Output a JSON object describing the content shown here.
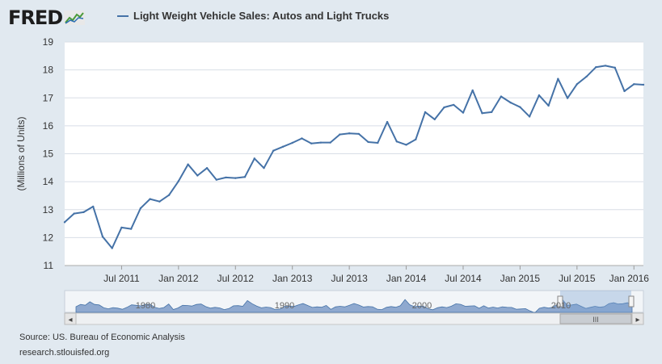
{
  "header": {
    "logo_text": "FRED",
    "logo_icon": "fred-graph-icon",
    "legend_label": "Light Weight Vehicle Sales: Autos and Light Trucks"
  },
  "footer": {
    "source": "Source: US. Bureau of Economic Analysis",
    "url": "research.stlouisfed.org"
  },
  "navigator": {
    "year_labels": [
      "1980",
      "1990",
      "2000",
      "2010"
    ],
    "scroll_handle_label": "III",
    "left_arrow": "◂",
    "right_arrow": "▸"
  },
  "colors": {
    "background": "#e1e9f0",
    "plot_background": "#ffffff",
    "series": "#4572a7",
    "grid": "#d8dee6",
    "navigator_fill": "#8fa9cf"
  },
  "chart_data": {
    "type": "line",
    "title": "",
    "xlabel": "",
    "ylabel": "(Millions of Units)",
    "ylim": [
      11,
      19
    ],
    "yticks": [
      11,
      12,
      13,
      14,
      15,
      16,
      17,
      18,
      19
    ],
    "x_tick_labels": [
      "Jul 2011",
      "Jan 2012",
      "Jul 2012",
      "Jan 2013",
      "Jul 2013",
      "Jan 2014",
      "Jul 2014",
      "Jan 2015",
      "Jul 2015",
      "Jan 2016"
    ],
    "grid": true,
    "legend_position": "top-left",
    "series": [
      {
        "name": "Light Weight Vehicle Sales: Autos and Light Trucks",
        "x": [
          "2011-01",
          "2011-02",
          "2011-03",
          "2011-04",
          "2011-05",
          "2011-06",
          "2011-07",
          "2011-08",
          "2011-09",
          "2011-10",
          "2011-11",
          "2011-12",
          "2012-01",
          "2012-02",
          "2012-03",
          "2012-04",
          "2012-05",
          "2012-06",
          "2012-07",
          "2012-08",
          "2012-09",
          "2012-10",
          "2012-11",
          "2012-12",
          "2013-01",
          "2013-02",
          "2013-03",
          "2013-04",
          "2013-05",
          "2013-06",
          "2013-07",
          "2013-08",
          "2013-09",
          "2013-10",
          "2013-11",
          "2013-12",
          "2014-01",
          "2014-02",
          "2014-03",
          "2014-04",
          "2014-05",
          "2014-06",
          "2014-07",
          "2014-08",
          "2014-09",
          "2014-10",
          "2014-11",
          "2014-12",
          "2015-01",
          "2015-02",
          "2015-03",
          "2015-04",
          "2015-05",
          "2015-06",
          "2015-07",
          "2015-08",
          "2015-09",
          "2015-10",
          "2015-11",
          "2015-12",
          "2016-01",
          "2016-02"
        ],
        "values": [
          12.55,
          12.86,
          12.91,
          13.11,
          12.03,
          11.62,
          12.36,
          12.31,
          13.05,
          13.38,
          13.29,
          13.52,
          14.02,
          14.62,
          14.22,
          14.49,
          14.07,
          14.15,
          14.13,
          14.17,
          14.83,
          14.49,
          15.11,
          15.25,
          15.39,
          15.55,
          15.37,
          15.4,
          15.4,
          15.69,
          15.73,
          15.71,
          15.42,
          15.39,
          16.14,
          15.44,
          15.32,
          15.51,
          16.49,
          16.23,
          16.66,
          16.75,
          16.47,
          17.27,
          16.45,
          16.49,
          17.05,
          16.83,
          16.67,
          16.33,
          17.09,
          16.72,
          17.68,
          16.99,
          17.49,
          17.76,
          18.1,
          18.15,
          18.08,
          17.24,
          17.49,
          17.47
        ]
      }
    ]
  }
}
